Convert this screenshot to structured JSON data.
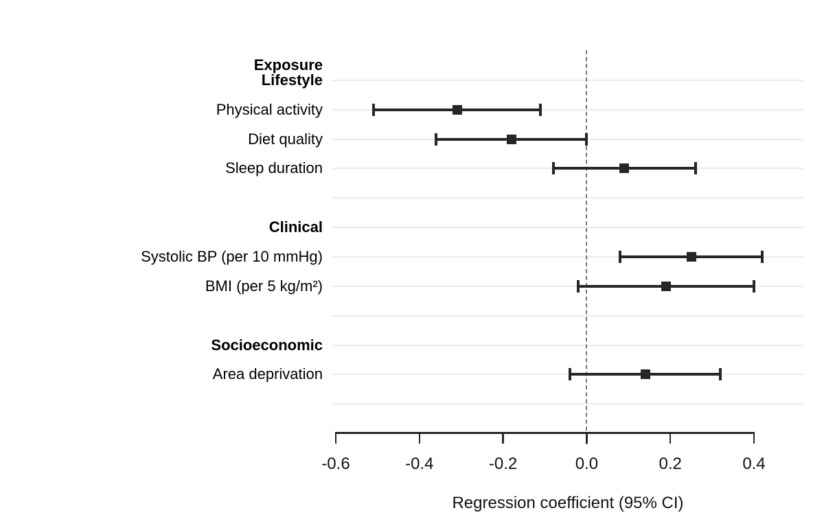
{
  "chart_data": {
    "type": "scatter",
    "variant": "forest-plot",
    "title": "",
    "column_header": "Exposure",
    "xlabel": "Regression coefficient (95% CI)",
    "x_ticks": [
      -0.6,
      -0.4,
      -0.2,
      0.0,
      0.2,
      0.4
    ],
    "x_tick_labels": [
      "-0.6",
      "-0.4",
      "-0.2",
      "0.0",
      "0.2",
      "0.4"
    ],
    "xlim": [
      -0.61,
      0.52
    ],
    "reference_line": 0.0,
    "grid": "horizontal-only",
    "legend": "none",
    "groups": [
      {
        "label": "Lifestyle",
        "items": [
          {
            "label": "Physical activity",
            "estimate": -0.31,
            "ci_low": -0.51,
            "ci_high": -0.11
          },
          {
            "label": "Diet quality",
            "estimate": -0.18,
            "ci_low": -0.36,
            "ci_high": 0.0
          },
          {
            "label": "Sleep duration",
            "estimate": 0.09,
            "ci_low": -0.08,
            "ci_high": 0.26
          }
        ]
      },
      {
        "label": "Clinical",
        "items": [
          {
            "label": "Systolic BP (per 10 mmHg)",
            "estimate": 0.25,
            "ci_low": 0.08,
            "ci_high": 0.42
          },
          {
            "label": "BMI (per 5 kg/m²)",
            "estimate": 0.19,
            "ci_low": -0.02,
            "ci_high": 0.4
          }
        ]
      },
      {
        "label": "Socioeconomic",
        "items": [
          {
            "label": "Area deprivation",
            "estimate": 0.14,
            "ci_low": -0.04,
            "ci_high": 0.32
          }
        ]
      }
    ],
    "colors": {
      "background": "#ffffff",
      "marker": "#262626",
      "ci_line": "#262626",
      "axis": "#262626",
      "gridline": "#ebebeb",
      "reference_line": "#7b7b7b",
      "text": "#000000"
    }
  }
}
